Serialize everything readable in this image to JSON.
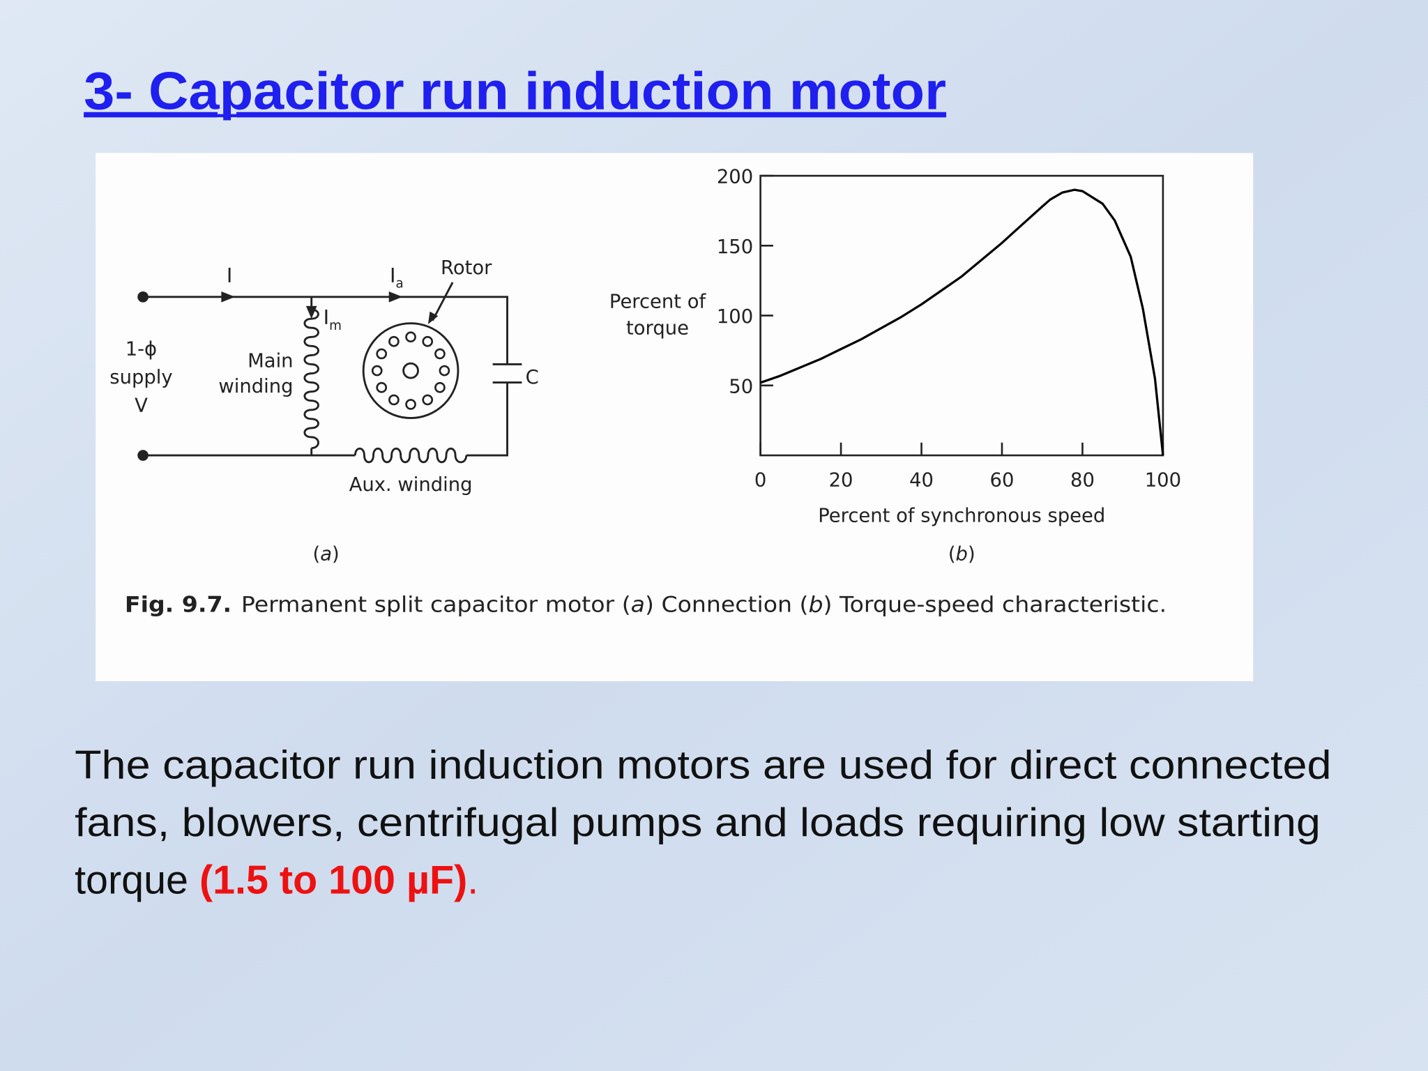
{
  "title": "3- Capacitor run induction motor",
  "figure": {
    "circuit": {
      "line_current": "I",
      "aux_current": {
        "symbol": "I",
        "subscript": "a"
      },
      "main_current": {
        "symbol": "I",
        "subscript": "m"
      },
      "rotor": "Rotor",
      "supply": [
        "1-ϕ",
        "supply",
        "V"
      ],
      "main_winding": [
        "Main",
        "winding"
      ],
      "capacitor": "C",
      "aux_winding": "Aux. winding",
      "panel_label": [
        "(",
        "a",
        ")"
      ]
    },
    "caption": [
      "Fig. 9.7.",
      "Permanent split capacitor motor (",
      "a",
      ") Connection (",
      "b",
      ") Torque-speed characteristic."
    ]
  },
  "chart_data": {
    "type": "line",
    "y_label": [
      "Percent of",
      "torque"
    ],
    "x_label": "Percent of synchronous speed",
    "panel_label": [
      "(",
      "b",
      ")"
    ],
    "x": [
      0,
      5,
      10,
      15,
      20,
      25,
      30,
      35,
      40,
      45,
      50,
      55,
      60,
      65,
      70,
      72,
      75,
      78,
      80,
      85,
      88,
      90,
      92,
      95,
      98,
      100
    ],
    "series": [
      {
        "color": "#000000",
        "values": [
          52,
          57,
          63,
          69,
          76,
          83,
          91,
          99,
          108,
          118,
          128,
          140,
          152,
          165,
          178,
          183,
          188,
          190,
          189,
          180,
          168,
          155,
          142,
          105,
          55,
          0
        ]
      }
    ],
    "xlim": [
      0,
      100
    ],
    "ylim": [
      0,
      200
    ],
    "xticks": [
      0,
      20,
      40,
      60,
      80,
      100
    ],
    "yticks": [
      50,
      100,
      150,
      200
    ]
  },
  "body": {
    "lines": [
      "The capacitor run induction motors are used for direct connected",
      "fans, blowers, centrifugal pumps and loads requiring low starting"
    ],
    "last_line": [
      "torque ",
      "(1.5 to 100 µF)",
      "."
    ]
  }
}
